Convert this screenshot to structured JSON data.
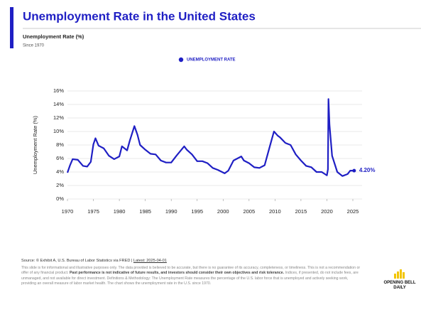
{
  "chart_data": {
    "type": "line",
    "title": "Unemployment Rate in the United States",
    "subtitle": "Unemployment Rate (%)",
    "note": "Since 1970",
    "y_label": "Unemployment Rate (%)",
    "x": [
      1970.0,
      1970.5,
      1971.0,
      1972.0,
      1973.0,
      1973.8,
      1974.5,
      1975.0,
      1975.4,
      1976.0,
      1977.0,
      1978.0,
      1979.0,
      1980.0,
      1980.5,
      1981.0,
      1981.5,
      1982.0,
      1982.9,
      1983.5,
      1984.0,
      1985.0,
      1986.0,
      1987.0,
      1988.0,
      1989.0,
      1990.0,
      1991.0,
      1992.5,
      1993.0,
      1994.0,
      1995.0,
      1996.0,
      1997.0,
      1998.0,
      1999.0,
      2000.3,
      2001.0,
      2002.0,
      2003.5,
      2004.0,
      2005.0,
      2006.0,
      2007.0,
      2008.0,
      2009.0,
      2009.8,
      2010.5,
      2011.0,
      2012.0,
      2013.0,
      2014.0,
      2015.0,
      2016.0,
      2017.0,
      2018.0,
      2019.0,
      2020.0,
      2020.2,
      2020.3,
      2020.5,
      2021.0,
      2022.0,
      2023.0,
      2024.0,
      2024.5,
      2025.25
    ],
    "series": [
      {
        "name": "UNEMPLOYMENT RATE",
        "color": "#1f1fc4",
        "values": [
          3.9,
          5.0,
          5.9,
          5.8,
          4.9,
          4.8,
          5.5,
          8.1,
          9.0,
          7.9,
          7.5,
          6.4,
          5.9,
          6.3,
          7.8,
          7.5,
          7.2,
          8.6,
          10.8,
          9.5,
          8.0,
          7.3,
          6.7,
          6.6,
          5.7,
          5.4,
          5.4,
          6.4,
          7.8,
          7.3,
          6.6,
          5.6,
          5.6,
          5.3,
          4.6,
          4.3,
          3.8,
          4.2,
          5.7,
          6.3,
          5.7,
          5.3,
          4.7,
          4.6,
          5.0,
          7.8,
          10.0,
          9.4,
          9.1,
          8.3,
          8.0,
          6.6,
          5.7,
          4.9,
          4.7,
          4.0,
          4.0,
          3.5,
          4.4,
          14.8,
          11.0,
          6.4,
          4.0,
          3.4,
          3.7,
          4.2,
          4.2
        ],
        "value_labels": [
          null,
          null,
          null,
          null,
          null,
          null,
          null,
          null,
          null,
          null,
          null,
          null,
          null,
          null,
          null,
          null,
          null,
          null,
          null,
          null,
          null,
          null,
          null,
          null,
          null,
          null,
          null,
          null,
          null,
          null,
          null,
          null,
          null,
          null,
          null,
          null,
          null,
          null,
          null,
          null,
          null,
          null,
          null,
          null,
          null,
          null,
          null,
          null,
          null,
          null,
          null,
          null,
          null,
          null,
          null,
          null,
          null,
          null,
          null,
          null,
          null,
          null,
          null,
          null,
          null,
          null,
          "4.20%"
        ]
      }
    ],
    "xlim": [
      1970,
      2025
    ],
    "xticks": [
      1970,
      1975,
      1980,
      1985,
      1990,
      1995,
      2000,
      2005,
      2010,
      2015,
      2020,
      2025
    ],
    "ylim": [
      0,
      16
    ],
    "yticks": [
      {
        "value": 0,
        "label": "0%"
      },
      {
        "value": 2,
        "label": "2%"
      },
      {
        "value": 4,
        "label": "4%"
      },
      {
        "value": 6,
        "label": "6%"
      },
      {
        "value": 8,
        "label": "8%"
      },
      {
        "value": 10,
        "label": "10%"
      },
      {
        "value": 12,
        "label": "12%"
      },
      {
        "value": 14,
        "label": "14%"
      },
      {
        "value": 16,
        "label": "16%"
      }
    ],
    "grid": true
  },
  "footer": {
    "source": "Source: © Exhibit A, U.S. Bureau of Labor Statistics via FRED | ",
    "latest": "Latest: 2025-04-01",
    "disclaimer_1": "This slide is for informational and illustrative purposes only. The data provided is believed to be accurate, but there is no guarantee of its accuracy, completeness, or timeliness. This is not a recommendation or offer of any financial product. ",
    "disclaimer_bold": "Past performance is not indicative of future results, and investors should consider their own objectives and risk tolerance.",
    "disclaimer_2": " Indices, if presented, do not include fees, are unmanaged, and not available for direct investment. Definitions & Methodology: The Unemployment Rate measures the percentage of the U.S. labor force that is unemployed and actively seeking work, providing an overall measure of labor market health. The chart shows the unemployment rate in the U.S. since 1970.",
    "logo": [
      "OPENING BELL",
      "DAILY"
    ]
  }
}
